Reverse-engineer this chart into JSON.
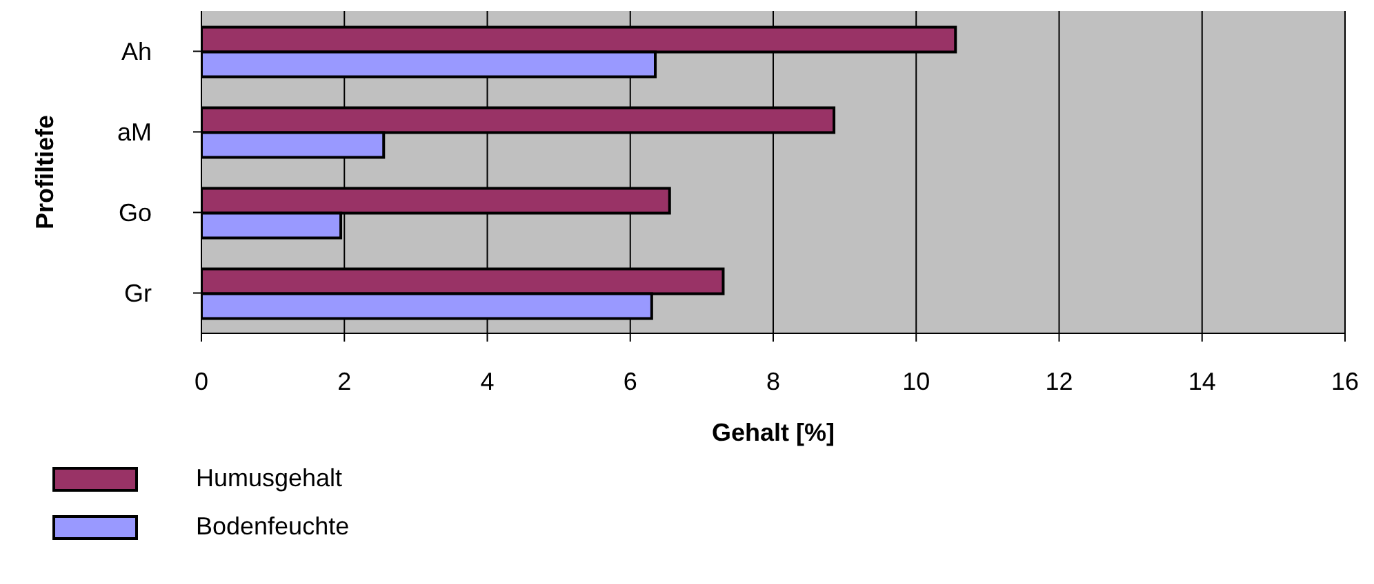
{
  "chart_data": {
    "type": "bar",
    "orientation": "horizontal",
    "xlabel": "Gehalt [%]",
    "ylabel": "Profiltiefe",
    "categories": [
      "Ah",
      "aM",
      "Go",
      "Gr"
    ],
    "series": [
      {
        "name": "Humusgehalt",
        "color": "#993366",
        "values": [
          10.55,
          8.85,
          6.55,
          7.3
        ]
      },
      {
        "name": "Bodenfeuchte",
        "color": "#9999ff",
        "values": [
          6.35,
          2.55,
          1.95,
          6.3
        ]
      }
    ],
    "xlim": [
      0,
      16
    ],
    "xticks": [
      0,
      2,
      4,
      6,
      8,
      10,
      12,
      14,
      16
    ],
    "grid": "x",
    "legend": "bottom left"
  }
}
